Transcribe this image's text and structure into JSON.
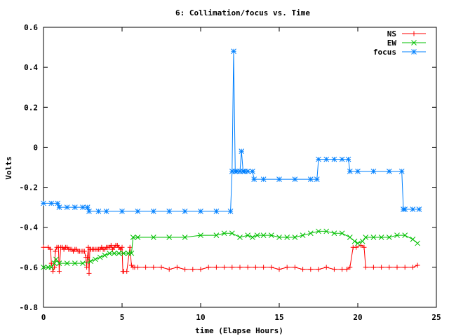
{
  "chart_data": {
    "type": "line",
    "title": "6: Collimation/focus vs. Time",
    "xlabel": "time (Elapse Hours)",
    "ylabel": "Volts",
    "xlim": [
      0,
      25
    ],
    "ylim": [
      -0.8,
      0.6
    ],
    "xticks": [
      0,
      5,
      10,
      15,
      20,
      25
    ],
    "xtick_labels": [
      "0",
      "5",
      "10",
      "15",
      "20",
      "25"
    ],
    "yticks": [
      0.6,
      0.4,
      0.2,
      0,
      -0.2,
      -0.4,
      -0.6,
      -0.8
    ],
    "ytick_labels": [
      "0.6",
      "0.4",
      "0.2",
      "0",
      "-0.2",
      "-0.4",
      "-0.6",
      "-0.8"
    ],
    "legend_position": "top-right",
    "grid": false,
    "series": [
      {
        "name": "NS",
        "color": "#ff0000",
        "marker": "plus",
        "x": [
          0.0,
          0.3,
          0.45,
          0.5,
          0.6,
          0.7,
          0.75,
          0.85,
          0.95,
          1.0,
          1.1,
          1.2,
          1.3,
          1.4,
          1.5,
          1.6,
          1.7,
          1.8,
          1.9,
          2.0,
          2.1,
          2.2,
          2.3,
          2.4,
          2.5,
          2.6,
          2.7,
          2.75,
          2.8,
          2.85,
          2.9,
          2.95,
          3.0,
          3.1,
          3.2,
          3.3,
          3.4,
          3.5,
          3.6,
          3.7,
          3.8,
          3.9,
          4.0,
          4.1,
          4.2,
          4.3,
          4.4,
          4.5,
          4.6,
          4.7,
          4.8,
          4.9,
          5.0,
          5.05,
          5.1,
          5.3,
          5.5,
          5.6,
          5.7,
          5.8,
          6.0,
          6.5,
          7.0,
          7.5,
          8.0,
          8.5,
          9.0,
          9.5,
          10.0,
          10.5,
          11.0,
          11.5,
          12.0,
          12.5,
          13.0,
          13.5,
          14.0,
          14.5,
          15.0,
          15.5,
          16.0,
          16.5,
          17.0,
          17.5,
          18.0,
          18.5,
          19.0,
          19.3,
          19.5,
          19.7,
          19.9,
          20.2,
          20.4,
          20.5,
          21.0,
          21.5,
          22.0,
          22.5,
          23.0,
          23.5,
          23.8
        ],
        "y": [
          -0.5,
          -0.5,
          -0.51,
          -0.58,
          -0.62,
          -0.6,
          -0.52,
          -0.5,
          -0.5,
          -0.62,
          -0.5,
          -0.5,
          -0.51,
          -0.5,
          -0.5,
          -0.51,
          -0.51,
          -0.51,
          -0.52,
          -0.51,
          -0.51,
          -0.52,
          -0.52,
          -0.52,
          -0.52,
          -0.52,
          -0.55,
          -0.6,
          -0.55,
          -0.5,
          -0.63,
          -0.51,
          -0.51,
          -0.51,
          -0.51,
          -0.51,
          -0.51,
          -0.51,
          -0.51,
          -0.5,
          -0.51,
          -0.51,
          -0.5,
          -0.5,
          -0.5,
          -0.49,
          -0.51,
          -0.5,
          -0.49,
          -0.49,
          -0.5,
          -0.51,
          -0.5,
          -0.62,
          -0.62,
          -0.62,
          -0.5,
          -0.59,
          -0.6,
          -0.6,
          -0.6,
          -0.6,
          -0.6,
          -0.6,
          -0.61,
          -0.6,
          -0.61,
          -0.61,
          -0.61,
          -0.6,
          -0.6,
          -0.6,
          -0.6,
          -0.6,
          -0.6,
          -0.6,
          -0.6,
          -0.6,
          -0.61,
          -0.6,
          -0.6,
          -0.61,
          -0.61,
          -0.61,
          -0.6,
          -0.61,
          -0.61,
          -0.61,
          -0.6,
          -0.5,
          -0.5,
          -0.49,
          -0.5,
          -0.6,
          -0.6,
          -0.6,
          -0.6,
          -0.6,
          -0.6,
          -0.6,
          -0.59
        ]
      },
      {
        "name": "EW",
        "color": "#00c000",
        "marker": "cross",
        "x": [
          0.0,
          0.3,
          0.5,
          0.7,
          0.8,
          1.0,
          1.5,
          2.0,
          2.5,
          3.0,
          3.3,
          3.6,
          3.9,
          4.2,
          4.5,
          4.8,
          5.1,
          5.4,
          5.6,
          5.7,
          6.0,
          7.0,
          8.0,
          9.0,
          10.0,
          11.0,
          11.5,
          12.0,
          12.5,
          13.0,
          13.3,
          13.6,
          14.0,
          14.5,
          15.0,
          15.5,
          16.0,
          16.5,
          17.0,
          17.5,
          18.0,
          18.5,
          19.0,
          19.5,
          19.8,
          20.0,
          20.3,
          20.5,
          21.0,
          21.5,
          22.0,
          22.5,
          23.0,
          23.5,
          23.8
        ],
        "y": [
          -0.6,
          -0.6,
          -0.6,
          -0.58,
          -0.56,
          -0.58,
          -0.58,
          -0.58,
          -0.58,
          -0.57,
          -0.56,
          -0.55,
          -0.54,
          -0.53,
          -0.53,
          -0.53,
          -0.53,
          -0.53,
          -0.53,
          -0.45,
          -0.45,
          -0.45,
          -0.45,
          -0.45,
          -0.44,
          -0.44,
          -0.43,
          -0.43,
          -0.45,
          -0.44,
          -0.45,
          -0.44,
          -0.44,
          -0.44,
          -0.45,
          -0.45,
          -0.45,
          -0.44,
          -0.43,
          -0.42,
          -0.42,
          -0.43,
          -0.43,
          -0.45,
          -0.47,
          -0.48,
          -0.47,
          -0.45,
          -0.45,
          -0.45,
          -0.45,
          -0.44,
          -0.44,
          -0.46,
          -0.48
        ]
      },
      {
        "name": "focus",
        "color": "#0080ff",
        "marker": "star",
        "x": [
          0.0,
          0.5,
          0.9,
          1.0,
          1.5,
          2.0,
          2.5,
          2.8,
          2.9,
          3.5,
          4.0,
          5.0,
          6.0,
          7.0,
          8.0,
          9.0,
          10.0,
          11.0,
          11.9,
          12.0,
          12.1,
          12.2,
          12.3,
          12.5,
          12.6,
          12.7,
          12.8,
          13.0,
          13.3,
          13.4,
          14.0,
          15.0,
          16.0,
          17.0,
          17.4,
          17.5,
          18.0,
          18.5,
          19.0,
          19.4,
          19.5,
          20.0,
          21.0,
          22.0,
          22.8,
          22.9,
          23.0,
          23.5,
          23.9
        ],
        "y": [
          -0.28,
          -0.28,
          -0.28,
          -0.3,
          -0.3,
          -0.3,
          -0.3,
          -0.3,
          -0.32,
          -0.32,
          -0.32,
          -0.32,
          -0.32,
          -0.32,
          -0.32,
          -0.32,
          -0.32,
          -0.32,
          -0.32,
          -0.12,
          0.48,
          -0.12,
          -0.12,
          -0.12,
          -0.02,
          -0.12,
          -0.12,
          -0.12,
          -0.12,
          -0.16,
          -0.16,
          -0.16,
          -0.16,
          -0.16,
          -0.16,
          -0.06,
          -0.06,
          -0.06,
          -0.06,
          -0.06,
          -0.12,
          -0.12,
          -0.12,
          -0.12,
          -0.12,
          -0.31,
          -0.31,
          -0.31,
          -0.31
        ]
      }
    ]
  }
}
